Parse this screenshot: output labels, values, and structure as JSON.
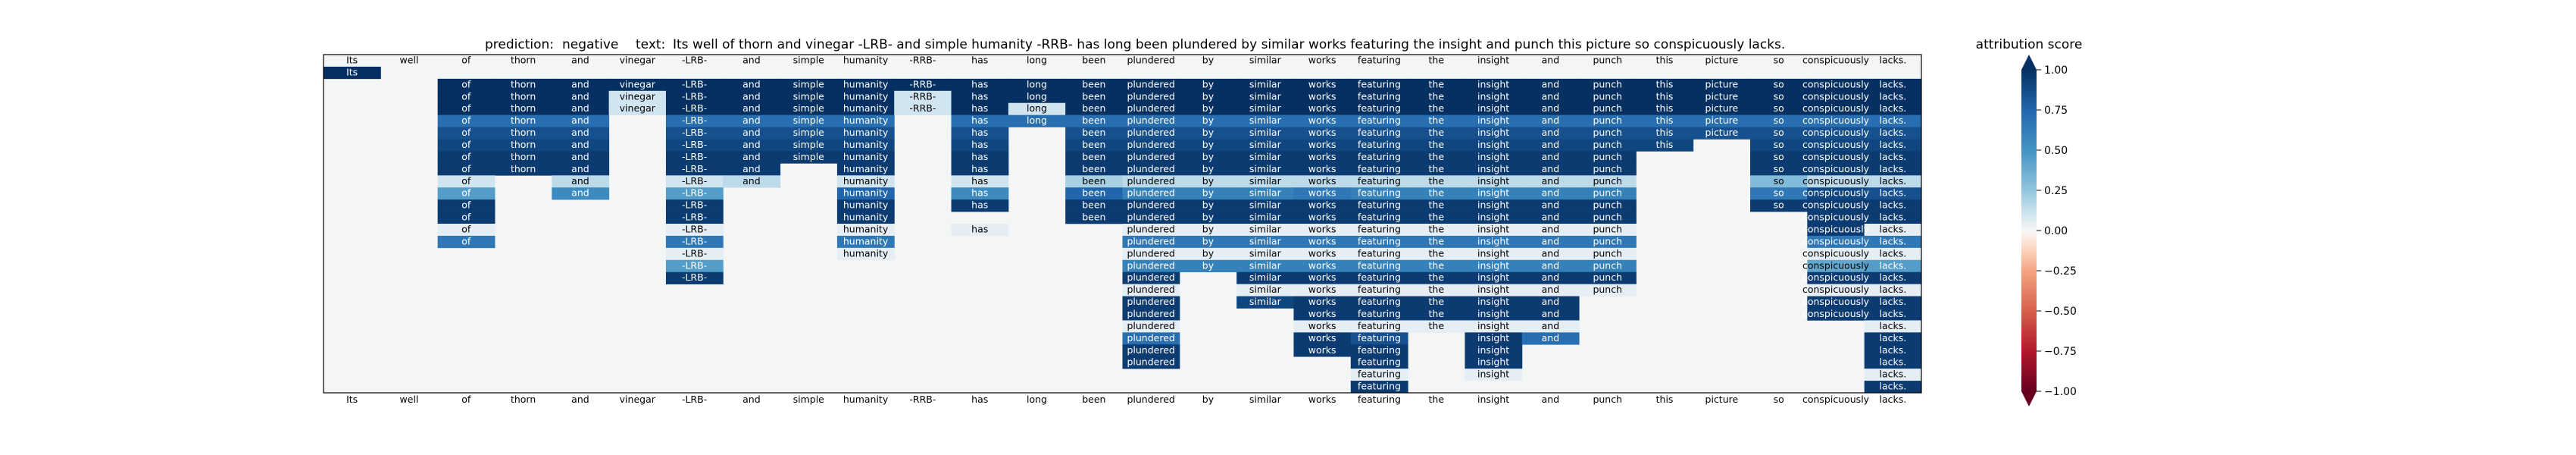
{
  "header": {
    "prediction_label": "prediction:",
    "prediction_value": "negative",
    "text_label": "text:",
    "text_value": "Its well of thorn and vinegar -LRB- and simple humanity -RRB- has long been plundered by similar works featuring the insight and punch this picture so conspicuously lacks."
  },
  "colorbar": {
    "label": "attribution score",
    "ticks": [
      "1.00",
      "0.75",
      "0.50",
      "0.25",
      "0.00",
      "−0.25",
      "−0.50",
      "−0.75",
      "−1.00"
    ],
    "tick_values": [
      1.0,
      0.75,
      0.5,
      0.25,
      0.0,
      -0.25,
      -0.5,
      -0.75,
      -1.0
    ],
    "colors": {
      "pos_1": "#053061",
      "pos_075": "#2166ac",
      "pos_05": "#4393c3",
      "pos_025": "#92c5de",
      "zero": "#f7f7f7",
      "neg_025": "#fddbc7",
      "neg_05": "#f4a582",
      "neg_075": "#d6604d",
      "neg_1": "#67001f"
    }
  },
  "chart_data": {
    "type": "heatmap",
    "tokens": [
      "Its",
      "well",
      "of",
      "thorn",
      "and",
      "vinegar",
      "-LRB-",
      "and",
      "simple",
      "humanity",
      "-RRB-",
      "has",
      "long",
      "been",
      "plundered",
      "by",
      "similar",
      "works",
      "featuring",
      "the",
      "insight",
      "and",
      "punch",
      "this",
      "picture",
      "so",
      "conspicuously",
      "lacks."
    ],
    "vmin": -1.0,
    "vmax": 1.0,
    "background_value": 0.0,
    "rows": [
      [
        0,
        0,
        0,
        0,
        0,
        0,
        0,
        0,
        0,
        0,
        0,
        0,
        0,
        0,
        0,
        0,
        0,
        0,
        0,
        0,
        0,
        0,
        0,
        0,
        0,
        0,
        0,
        0
      ],
      [
        1,
        0,
        0,
        0,
        0,
        0,
        0,
        0,
        0,
        0,
        0,
        0,
        0,
        0,
        0,
        0,
        0,
        0,
        0,
        0,
        0,
        0,
        0,
        0,
        0,
        0,
        0,
        0
      ],
      [
        0,
        0,
        1,
        1,
        1,
        1,
        1,
        1,
        1,
        1,
        1,
        1,
        1,
        1,
        1,
        1,
        1,
        1,
        1,
        1,
        1,
        1,
        1,
        1,
        1,
        1,
        1,
        1
      ],
      [
        0,
        0,
        1,
        1,
        1,
        0.1,
        1,
        1,
        1,
        1,
        0.1,
        1,
        1,
        1,
        1,
        1,
        1,
        1,
        1,
        1,
        1,
        1,
        1,
        1,
        1,
        1,
        1,
        1
      ],
      [
        0,
        0,
        1,
        1,
        1,
        0.1,
        1,
        1,
        1,
        1,
        0.1,
        1,
        0.1,
        1,
        1,
        1,
        1,
        1,
        1,
        1,
        1,
        1,
        1,
        1,
        1,
        1,
        1,
        1
      ],
      [
        0,
        0,
        0.7,
        0.7,
        0.7,
        0,
        0.7,
        0.7,
        0.7,
        0.7,
        0,
        0.7,
        0.7,
        0.7,
        0.7,
        0.7,
        0.7,
        0.7,
        0.7,
        0.7,
        0.7,
        0.7,
        0.7,
        0.7,
        0.7,
        0.7,
        0.7,
        0.7
      ],
      [
        0,
        0,
        0.85,
        0.85,
        0.85,
        0,
        0.85,
        0.85,
        0.85,
        0.85,
        0,
        0.85,
        0,
        0.85,
        0.85,
        0.85,
        0.85,
        0.85,
        0.85,
        0.85,
        0.85,
        0.85,
        0.85,
        0.85,
        0.85,
        0.85,
        0.85,
        0.85
      ],
      [
        0,
        0,
        0.9,
        0.9,
        0.9,
        0,
        0.9,
        0.9,
        0.9,
        0.9,
        0,
        0.9,
        0,
        0.9,
        0.9,
        0.9,
        0.9,
        0.9,
        0.9,
        0.9,
        0.9,
        0.9,
        0.9,
        0.9,
        0,
        0.9,
        0.9,
        0.9
      ],
      [
        0,
        0,
        0.95,
        0.95,
        0.95,
        0,
        0.95,
        0.95,
        0.95,
        0.95,
        0,
        0.95,
        0,
        0.95,
        0.95,
        0.95,
        0.95,
        0.95,
        0.95,
        0.95,
        0.95,
        0.95,
        0.95,
        0,
        0,
        0.95,
        0.95,
        0.95
      ],
      [
        0,
        0,
        0.95,
        0.95,
        0.95,
        0,
        0.95,
        0.95,
        0,
        0.95,
        0,
        0.95,
        0,
        0.95,
        0.95,
        0.95,
        0.95,
        0.95,
        0.95,
        0.95,
        0.95,
        0.95,
        0.95,
        0,
        0,
        0.95,
        0.95,
        0.95
      ],
      [
        0,
        0,
        0.1,
        0,
        0.15,
        0,
        0.1,
        0.15,
        0,
        0.1,
        0,
        0.1,
        0,
        0.2,
        0.15,
        0.15,
        0.15,
        0.15,
        0.15,
        0.15,
        0.15,
        0.15,
        0.15,
        0,
        0,
        0.3,
        0.15,
        0.15
      ],
      [
        0,
        0,
        0.45,
        0,
        0.55,
        0,
        0.45,
        0,
        0,
        0.75,
        0,
        0.55,
        0,
        0.75,
        0.6,
        0.6,
        0.6,
        0.65,
        0.6,
        0.6,
        0.6,
        0.6,
        0.6,
        0,
        0,
        0.65,
        0.9,
        0.85
      ],
      [
        0,
        0,
        0.95,
        0,
        0,
        0,
        0.95,
        0,
        0,
        0.95,
        0,
        0.95,
        0,
        0.95,
        0.95,
        0.95,
        0.95,
        0.95,
        0.95,
        0.95,
        0.95,
        0.95,
        0.95,
        0,
        0,
        0.95,
        0.95,
        0.95
      ],
      [
        0,
        0,
        0.95,
        0,
        0,
        0,
        0.95,
        0,
        0,
        0.95,
        0,
        0,
        0,
        0.95,
        0.95,
        0.95,
        0.95,
        0.95,
        0.95,
        0.95,
        0.95,
        0.95,
        0.95,
        0,
        0,
        0,
        0.95,
        0.95
      ],
      [
        0,
        0,
        0.05,
        0,
        0,
        0,
        0.05,
        0,
        0,
        0.05,
        0,
        0.05,
        0,
        0,
        0.05,
        0.05,
        0.05,
        0.05,
        0.05,
        0.05,
        0.05,
        0.05,
        0.05,
        0,
        0,
        0,
        0.95,
        0.05
      ],
      [
        0,
        0,
        0.65,
        0,
        0,
        0,
        0.65,
        0,
        0,
        0.65,
        0,
        0,
        0,
        0,
        0.65,
        0.65,
        0.65,
        0.65,
        0.65,
        0.65,
        0.65,
        0.65,
        0.65,
        0,
        0,
        0,
        0.65,
        0.65
      ],
      [
        0,
        0,
        0,
        0,
        0,
        0,
        0.05,
        0,
        0,
        0.05,
        0,
        0,
        0,
        0,
        0.05,
        0.05,
        0.05,
        0.05,
        0.05,
        0.05,
        0.05,
        0.05,
        0.05,
        0,
        0,
        0,
        0.05,
        0.05
      ],
      [
        0,
        0,
        0,
        0,
        0,
        0,
        0.45,
        0,
        0,
        0,
        0,
        0,
        0,
        0,
        0.6,
        0.6,
        0.6,
        0.6,
        0.6,
        0.6,
        0.6,
        0.6,
        0.6,
        0,
        0,
        0,
        0.4,
        0.45
      ],
      [
        0,
        0,
        0,
        0,
        0,
        0,
        0.95,
        0,
        0,
        0,
        0,
        0,
        0,
        0,
        0.95,
        0,
        0.95,
        0.95,
        0.95,
        0.95,
        0.95,
        0.95,
        0.95,
        0,
        0,
        0,
        0.95,
        0.95
      ],
      [
        0,
        0,
        0,
        0,
        0,
        0,
        0,
        0,
        0,
        0,
        0,
        0,
        0,
        0,
        0.05,
        0,
        0.05,
        0.05,
        0.05,
        0.05,
        0.05,
        0.05,
        0.05,
        0,
        0,
        0,
        0.05,
        0.05
      ],
      [
        0,
        0,
        0,
        0,
        0,
        0,
        0,
        0,
        0,
        0,
        0,
        0,
        0,
        0,
        0.95,
        0,
        0.9,
        0.95,
        0.95,
        0.95,
        0.95,
        0.95,
        0,
        0,
        0,
        0,
        0.95,
        0.95
      ],
      [
        0,
        0,
        0,
        0,
        0,
        0,
        0,
        0,
        0,
        0,
        0,
        0,
        0,
        0,
        0.95,
        0,
        0,
        0.95,
        0.95,
        0.95,
        0.95,
        0.95,
        0,
        0,
        0,
        0,
        0.95,
        0.95
      ],
      [
        0,
        0,
        0,
        0,
        0,
        0,
        0,
        0,
        0,
        0,
        0,
        0,
        0,
        0,
        0.05,
        0,
        0,
        0.05,
        0.05,
        0.05,
        0.05,
        0.05,
        0,
        0,
        0,
        0,
        0,
        0.05
      ],
      [
        0,
        0,
        0,
        0,
        0,
        0,
        0,
        0,
        0,
        0,
        0,
        0,
        0,
        0,
        0.7,
        0,
        0,
        0.95,
        0.85,
        0,
        0.95,
        0.7,
        0,
        0,
        0,
        0,
        0,
        0.95
      ],
      [
        0,
        0,
        0,
        0,
        0,
        0,
        0,
        0,
        0,
        0,
        0,
        0,
        0,
        0,
        0.95,
        0,
        0,
        0.95,
        0.95,
        0,
        0.95,
        0,
        0,
        0,
        0,
        0,
        0,
        0.95
      ],
      [
        0,
        0,
        0,
        0,
        0,
        0,
        0,
        0,
        0,
        0,
        0,
        0,
        0,
        0,
        0.95,
        0,
        0,
        0,
        0.95,
        0,
        0.95,
        0,
        0,
        0,
        0,
        0,
        0,
        0.95
      ],
      [
        0,
        0,
        0,
        0,
        0,
        0,
        0,
        0,
        0,
        0,
        0,
        0,
        0,
        0,
        0,
        0,
        0,
        0,
        0.05,
        0,
        0.05,
        0,
        0,
        0,
        0,
        0,
        0,
        0.05
      ],
      [
        0,
        0,
        0,
        0,
        0,
        0,
        0,
        0,
        0,
        0,
        0,
        0,
        0,
        0,
        0,
        0,
        0,
        0,
        0.95,
        0,
        0,
        0,
        0,
        0,
        0,
        0,
        0,
        0.95
      ]
    ],
    "title": "prediction:  negative     text:  Its well of thorn and vinegar -LRB- and simple humanity -RRB- has long been plundered by similar works featuring the insight and punch this picture so conspicuously lacks.",
    "colorbar_label": "attribution score",
    "colorbar_range": [
      -1.0,
      1.0
    ],
    "grid": false
  }
}
